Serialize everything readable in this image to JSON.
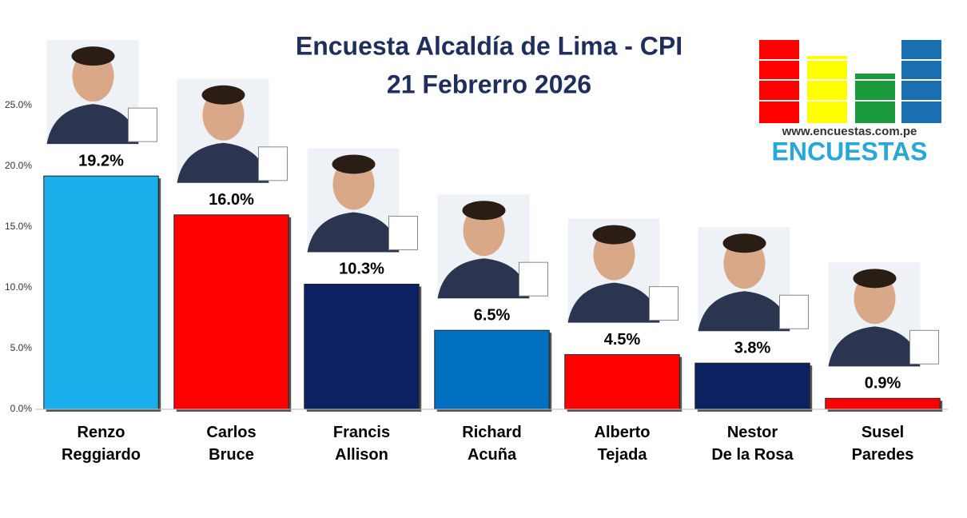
{
  "chart_data": {
    "type": "bar",
    "title": "Encuesta Alcaldía de Lima - CPI",
    "subtitle": "21 Febrerro 2026",
    "logo_url": "www.encuestas.com.pe",
    "logo_name": "ENCUESTAS",
    "categories": [
      "Renzo\nReggiardo",
      "Carlos\nBruce",
      "Francis\nAllison",
      "Richard\nAcuña",
      "Alberto\nTejada",
      "Nestor\nDe la Rosa",
      "Susel\nParedes"
    ],
    "values": [
      19.2,
      16.0,
      10.3,
      6.5,
      4.5,
      3.8,
      0.9
    ],
    "value_labels": [
      "19.2%",
      "16.0%",
      "10.3%",
      "6.5%",
      "4.5%",
      "3.8%",
      "0.9%"
    ],
    "colors": [
      "#1aaeea",
      "#ff0000",
      "#0c2160",
      "#0070c0",
      "#ff0000",
      "#0c2160",
      "#ff0000"
    ],
    "ylim": [
      0,
      30
    ],
    "yticks": [
      {
        "value": 0,
        "label": "0.0%"
      },
      {
        "value": 5,
        "label": "5.0%"
      },
      {
        "value": 10,
        "label": "10.0%"
      },
      {
        "value": 15,
        "label": "15.0%"
      },
      {
        "value": 20,
        "label": "20.0%"
      },
      {
        "value": 25,
        "label": "25.0%"
      }
    ],
    "grid": false
  }
}
